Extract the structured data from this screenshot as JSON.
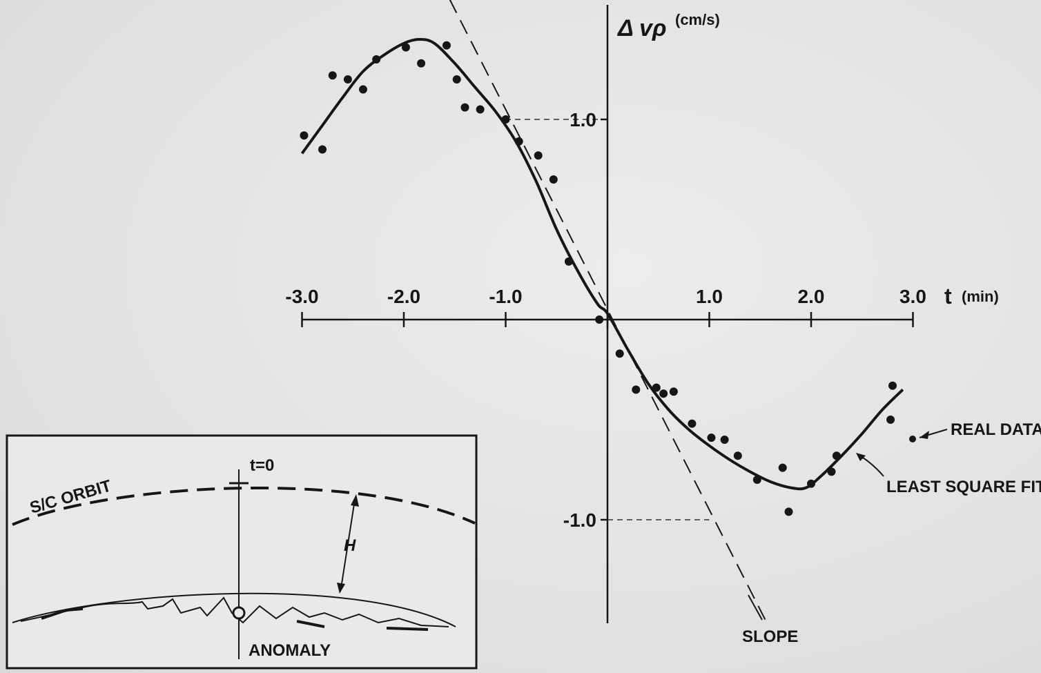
{
  "chart_data": {
    "type": "scatter",
    "title": "",
    "xlabel": "t",
    "xunit": "(min)",
    "ylabel": "Δ vρ",
    "yunit": "(cm/s)",
    "xlim": [
      -3.0,
      3.0
    ],
    "ylim": [
      -1.5,
      1.6
    ],
    "x_ticks": [
      -3.0,
      -2.0,
      -1.0,
      1.0,
      2.0,
      3.0
    ],
    "x_tick_labels": [
      "-3.0",
      "-2.0",
      "-1.0",
      "1.0",
      "2.0",
      "3.0"
    ],
    "y_ticks": [
      1.0,
      -1.0
    ],
    "y_tick_labels": [
      "1.0",
      "-1.0"
    ],
    "grid": false,
    "legend": "annotations on right side",
    "series": [
      {
        "name": "REAL DATA",
        "kind": "points",
        "x": [
          -2.98,
          -2.8,
          -2.7,
          -2.55,
          -2.4,
          -2.27,
          -1.98,
          -1.83,
          -1.58,
          -1.48,
          -1.4,
          -1.25,
          -1.0,
          -0.87,
          -0.68,
          -0.53,
          -0.38,
          -0.08,
          0.12,
          0.28,
          0.48,
          0.55,
          0.65,
          0.83,
          1.02,
          1.15,
          1.28,
          1.47,
          1.72,
          1.78,
          2.0,
          2.2,
          2.25,
          2.78,
          2.8
        ],
        "y": [
          0.92,
          0.85,
          1.22,
          1.2,
          1.15,
          1.3,
          1.36,
          1.28,
          1.37,
          1.2,
          1.06,
          1.05,
          1.0,
          0.89,
          0.82,
          0.7,
          0.29,
          0.0,
          -0.17,
          -0.35,
          -0.34,
          -0.37,
          -0.36,
          -0.52,
          -0.59,
          -0.6,
          -0.68,
          -0.8,
          -0.74,
          -0.96,
          -0.82,
          -0.76,
          -0.68,
          -0.5,
          -0.33
        ]
      },
      {
        "name": "LEAST SQUARE FIT",
        "kind": "curve",
        "x": [
          -3.0,
          -2.8,
          -2.6,
          -2.4,
          -2.2,
          -2.0,
          -1.85,
          -1.7,
          -1.5,
          -1.3,
          -1.1,
          -0.9,
          -0.7,
          -0.5,
          -0.3,
          -0.1,
          0.0,
          0.2,
          0.4,
          0.6,
          0.8,
          1.0,
          1.2,
          1.4,
          1.6,
          1.8,
          1.95,
          2.1,
          2.3,
          2.5,
          2.7,
          2.9
        ],
        "y": [
          0.83,
          0.97,
          1.11,
          1.24,
          1.32,
          1.38,
          1.4,
          1.38,
          1.28,
          1.16,
          1.04,
          0.89,
          0.69,
          0.45,
          0.25,
          0.08,
          0.03,
          -0.15,
          -0.32,
          -0.45,
          -0.55,
          -0.63,
          -0.7,
          -0.76,
          -0.81,
          -0.84,
          -0.84,
          -0.78,
          -0.68,
          -0.57,
          -0.45,
          -0.35
        ]
      },
      {
        "name": "SLOPE",
        "kind": "dashed-line",
        "x": [
          -1.55,
          1.55
        ],
        "y": [
          1.6,
          -1.5
        ]
      }
    ],
    "guides": [
      {
        "from_x": 0.0,
        "to_x": -1.0,
        "at_y": 1.0
      },
      {
        "from_x": 0.0,
        "to_x": 1.0,
        "at_y": -1.0
      }
    ],
    "annotations": {
      "real_data": "REAL DATA",
      "least_square_fit": "LEAST SQUARE FIT",
      "slope": "SLOPE"
    }
  },
  "inset": {
    "orbit_label": "S/C ORBIT",
    "time_label": "t=0",
    "height_label": "H",
    "anomaly_label": "ANOMALY"
  }
}
